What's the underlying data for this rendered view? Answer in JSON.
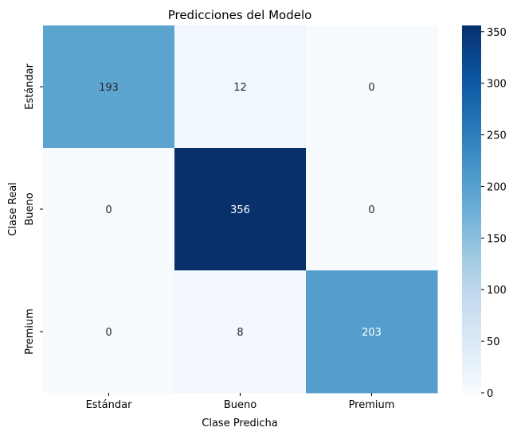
{
  "chart_data": {
    "type": "heatmap",
    "title": "Predicciones del Modelo",
    "xlabel": "Clase Predicha",
    "ylabel": "Clase Real",
    "x_categories": [
      "Estándar",
      "Bueno",
      "Premium"
    ],
    "y_categories": [
      "Estándar",
      "Bueno",
      "Premium"
    ],
    "values": [
      [
        193,
        12,
        0
      ],
      [
        0,
        356,
        0
      ],
      [
        0,
        8,
        203
      ]
    ],
    "colormap": "Blues",
    "colorbar": {
      "min": 0,
      "max": 356,
      "ticks": [
        0,
        50,
        100,
        150,
        200,
        250,
        300,
        350
      ]
    }
  }
}
